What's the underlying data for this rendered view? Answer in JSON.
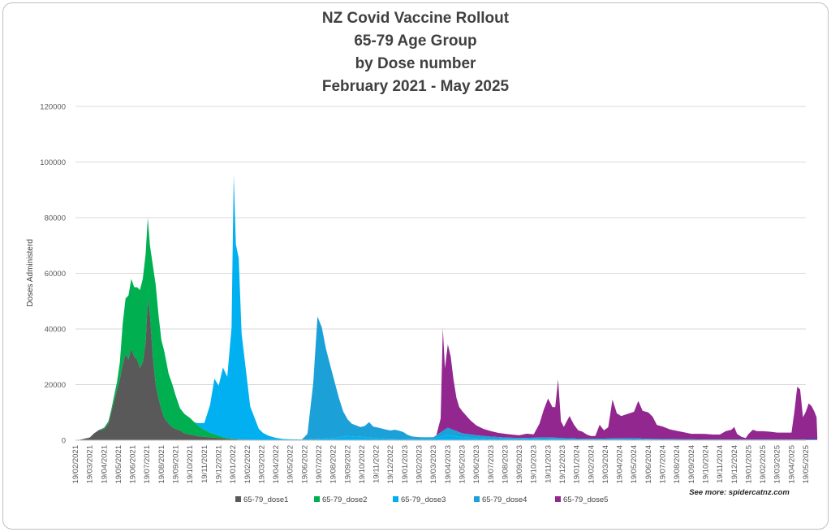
{
  "chart_data": {
    "type": "area",
    "title": [
      "NZ Covid Vaccine Rollout",
      "65-79 Age Group",
      "by Dose number",
      "February 2021 - May 2025"
    ],
    "xlabel": "",
    "ylabel": "Doses Administerd",
    "ylim": [
      0,
      120000
    ],
    "yticks": [
      0,
      20000,
      40000,
      60000,
      80000,
      100000,
      120000
    ],
    "grid": true,
    "legend_position": "bottom",
    "stacked": true,
    "note": "See more: spidercatnz.com",
    "x_tick_labels": [
      "19/02/2021",
      "19/03/2021",
      "19/04/2021",
      "19/05/2021",
      "19/06/2021",
      "19/07/2021",
      "19/08/2021",
      "19/09/2021",
      "19/10/2021",
      "19/11/2021",
      "19/12/2021",
      "19/01/2022",
      "19/02/2022",
      "19/03/2022",
      "19/04/2022",
      "19/05/2022",
      "19/06/2022",
      "19/07/2022",
      "19/08/2022",
      "19/09/2022",
      "19/10/2022",
      "19/11/2022",
      "19/12/2022",
      "19/01/2023",
      "19/02/2023",
      "19/03/2023",
      "19/04/2023",
      "19/05/2023",
      "19/06/2023",
      "19/07/2023",
      "19/08/2023",
      "19/09/2023",
      "19/10/2023",
      "19/11/2023",
      "19/12/2023",
      "19/01/2024",
      "19/02/2024",
      "19/03/2024",
      "19/04/2024",
      "19/05/2024",
      "19/06/2024",
      "19/07/2024",
      "19/08/2024",
      "19/09/2024",
      "19/10/2024",
      "19/11/2024",
      "19/12/2024",
      "19/01/2025",
      "19/02/2025",
      "19/03/2025",
      "19/04/2025",
      "19/05/2025"
    ],
    "series": [
      {
        "name": "65-79_dose1",
        "color": "#595959",
        "points": [
          [
            0,
            0
          ],
          [
            0.3,
            200
          ],
          [
            0.6,
            500
          ],
          [
            1,
            1000
          ],
          [
            1.3,
            2500
          ],
          [
            1.6,
            3500
          ],
          [
            2,
            4000
          ],
          [
            2.3,
            6000
          ],
          [
            2.6,
            12000
          ],
          [
            2.9,
            18000
          ],
          [
            3.1,
            22000
          ],
          [
            3.3,
            27000
          ],
          [
            3.5,
            31000
          ],
          [
            3.7,
            29000
          ],
          [
            3.9,
            33000
          ],
          [
            4.1,
            30000
          ],
          [
            4.3,
            29000
          ],
          [
            4.5,
            26000
          ],
          [
            4.7,
            28000
          ],
          [
            4.9,
            35000
          ],
          [
            5.05,
            51000
          ],
          [
            5.2,
            45000
          ],
          [
            5.4,
            30000
          ],
          [
            5.6,
            20000
          ],
          [
            5.8,
            15000
          ],
          [
            6,
            11000
          ],
          [
            6.2,
            8000
          ],
          [
            6.5,
            6000
          ],
          [
            6.8,
            4500
          ],
          [
            7,
            4000
          ],
          [
            7.3,
            3500
          ],
          [
            7.6,
            2500
          ],
          [
            8,
            2000
          ],
          [
            8.5,
            1500
          ],
          [
            9,
            1200
          ],
          [
            9.5,
            1000
          ],
          [
            10,
            800
          ],
          [
            10.5,
            500
          ],
          [
            11,
            300
          ],
          [
            12,
            200
          ],
          [
            13,
            100
          ],
          [
            14,
            50
          ],
          [
            20,
            0
          ],
          [
            51.8,
            0
          ]
        ]
      },
      {
        "name": "65-79_dose2",
        "color": "#00b050",
        "points": [
          [
            0,
            0
          ],
          [
            1.5,
            0
          ],
          [
            2,
            500
          ],
          [
            2.5,
            1000
          ],
          [
            2.9,
            3000
          ],
          [
            3.1,
            6000
          ],
          [
            3.3,
            15000
          ],
          [
            3.5,
            20000
          ],
          [
            3.7,
            23000
          ],
          [
            3.9,
            25000
          ],
          [
            4.1,
            25000
          ],
          [
            4.3,
            26000
          ],
          [
            4.5,
            28000
          ],
          [
            4.7,
            30000
          ],
          [
            4.9,
            32000
          ],
          [
            5.05,
            29000
          ],
          [
            5.2,
            25000
          ],
          [
            5.4,
            33000
          ],
          [
            5.6,
            36000
          ],
          [
            5.8,
            30000
          ],
          [
            6,
            25000
          ],
          [
            6.2,
            24000
          ],
          [
            6.5,
            18000
          ],
          [
            6.8,
            15000
          ],
          [
            7,
            12000
          ],
          [
            7.3,
            8000
          ],
          [
            7.6,
            7000
          ],
          [
            8,
            6000
          ],
          [
            8.5,
            4000
          ],
          [
            9,
            2500
          ],
          [
            9.5,
            1500
          ],
          [
            10,
            800
          ],
          [
            10.5,
            400
          ],
          [
            11,
            200
          ],
          [
            12,
            0
          ],
          [
            51.8,
            0
          ]
        ]
      },
      {
        "name": "65-79_dose3",
        "color": "#00b0f0",
        "points": [
          [
            0,
            0
          ],
          [
            8.3,
            0
          ],
          [
            8.6,
            1000
          ],
          [
            9,
            2500
          ],
          [
            9.4,
            10000
          ],
          [
            9.7,
            20000
          ],
          [
            10,
            18000
          ],
          [
            10.3,
            25000
          ],
          [
            10.6,
            22000
          ],
          [
            10.9,
            40000
          ],
          [
            11.05,
            95000
          ],
          [
            11.2,
            70000
          ],
          [
            11.4,
            65000
          ],
          [
            11.6,
            38000
          ],
          [
            11.9,
            25000
          ],
          [
            12.2,
            12000
          ],
          [
            12.5,
            8000
          ],
          [
            12.8,
            4000
          ],
          [
            13.1,
            2500
          ],
          [
            13.5,
            1500
          ],
          [
            14,
            800
          ],
          [
            14.5,
            400
          ],
          [
            15,
            300
          ],
          [
            16,
            200
          ],
          [
            17,
            500
          ],
          [
            18,
            800
          ],
          [
            19,
            1500
          ],
          [
            20,
            1200
          ],
          [
            21,
            800
          ],
          [
            22,
            500
          ],
          [
            23,
            400
          ],
          [
            24,
            300
          ],
          [
            25,
            600
          ],
          [
            26,
            2000
          ],
          [
            26.5,
            1500
          ],
          [
            27,
            1000
          ],
          [
            28,
            800
          ],
          [
            29,
            500
          ],
          [
            30,
            400
          ],
          [
            31,
            300
          ],
          [
            32,
            500
          ],
          [
            33,
            400
          ],
          [
            34,
            300
          ],
          [
            35,
            200
          ],
          [
            38,
            200
          ],
          [
            39,
            300
          ],
          [
            40,
            200
          ],
          [
            45,
            100
          ],
          [
            51.8,
            100
          ]
        ]
      },
      {
        "name": "65-79_dose4",
        "color": "#1ba1d8",
        "points": [
          [
            0,
            0
          ],
          [
            15.8,
            0
          ],
          [
            16.2,
            2000
          ],
          [
            16.6,
            20000
          ],
          [
            16.9,
            44000
          ],
          [
            17.2,
            40000
          ],
          [
            17.5,
            32000
          ],
          [
            17.8,
            26000
          ],
          [
            18.1,
            20000
          ],
          [
            18.4,
            14000
          ],
          [
            18.7,
            9000
          ],
          [
            19,
            6000
          ],
          [
            19.3,
            4500
          ],
          [
            19.6,
            4000
          ],
          [
            19.9,
            3500
          ],
          [
            20.2,
            4000
          ],
          [
            20.5,
            5500
          ],
          [
            20.8,
            4000
          ],
          [
            21.1,
            3800
          ],
          [
            21.4,
            3500
          ],
          [
            21.7,
            3200
          ],
          [
            22,
            3000
          ],
          [
            22.3,
            3300
          ],
          [
            22.6,
            3000
          ],
          [
            22.9,
            2500
          ],
          [
            23.2,
            1500
          ],
          [
            23.5,
            1000
          ],
          [
            24,
            800
          ],
          [
            24.5,
            600
          ],
          [
            25,
            500
          ],
          [
            25.5,
            1500
          ],
          [
            26,
            2500
          ],
          [
            26.5,
            2000
          ],
          [
            27,
            1500
          ],
          [
            27.5,
            1200
          ],
          [
            28,
            1000
          ],
          [
            29,
            800
          ],
          [
            30,
            600
          ],
          [
            31,
            500
          ],
          [
            32,
            400
          ],
          [
            33,
            600
          ],
          [
            34,
            500
          ],
          [
            35,
            400
          ],
          [
            36,
            300
          ],
          [
            38,
            500
          ],
          [
            39,
            400
          ],
          [
            40,
            300
          ],
          [
            42,
            200
          ],
          [
            44,
            150
          ],
          [
            51.8,
            150
          ]
        ]
      },
      {
        "name": "65-79_dose5",
        "color": "#92278f",
        "points": [
          [
            0,
            0
          ],
          [
            25.2,
            0
          ],
          [
            25.5,
            5000
          ],
          [
            25.65,
            37000
          ],
          [
            25.8,
            22000
          ],
          [
            26,
            30000
          ],
          [
            26.2,
            26000
          ],
          [
            26.4,
            18000
          ],
          [
            26.6,
            12000
          ],
          [
            26.8,
            9000
          ],
          [
            27,
            8000
          ],
          [
            27.3,
            6500
          ],
          [
            27.6,
            5000
          ],
          [
            28,
            3500
          ],
          [
            28.5,
            2500
          ],
          [
            29,
            2000
          ],
          [
            29.5,
            1500
          ],
          [
            30,
            1300
          ],
          [
            30.5,
            1100
          ],
          [
            31,
            1000
          ],
          [
            31.5,
            1500
          ],
          [
            32,
            1200
          ],
          [
            32.4,
            5000
          ],
          [
            32.7,
            10000
          ],
          [
            33,
            14000
          ],
          [
            33.3,
            11000
          ],
          [
            33.5,
            11000
          ],
          [
            33.7,
            21000
          ],
          [
            33.9,
            6000
          ],
          [
            34.1,
            4000
          ],
          [
            34.3,
            6000
          ],
          [
            34.5,
            8000
          ],
          [
            34.8,
            5000
          ],
          [
            35.1,
            3000
          ],
          [
            35.4,
            2500
          ],
          [
            35.7,
            1500
          ],
          [
            36,
            1000
          ],
          [
            36.3,
            1000
          ],
          [
            36.6,
            5000
          ],
          [
            36.9,
            3000
          ],
          [
            37.2,
            4000
          ],
          [
            37.5,
            14000
          ],
          [
            37.8,
            9000
          ],
          [
            38.1,
            8000
          ],
          [
            38.4,
            8500
          ],
          [
            38.7,
            9000
          ],
          [
            39,
            9500
          ],
          [
            39.3,
            13500
          ],
          [
            39.6,
            10000
          ],
          [
            40,
            9500
          ],
          [
            40.3,
            8000
          ],
          [
            40.6,
            5000
          ],
          [
            41,
            4500
          ],
          [
            41.5,
            3500
          ],
          [
            42,
            3000
          ],
          [
            42.5,
            2500
          ],
          [
            43,
            2000
          ],
          [
            43.5,
            2000
          ],
          [
            44,
            2000
          ],
          [
            44.5,
            1800
          ],
          [
            45,
            1800
          ],
          [
            45.4,
            3000
          ],
          [
            45.8,
            3500
          ],
          [
            46,
            4500
          ],
          [
            46.2,
            2000
          ],
          [
            46.5,
            1000
          ],
          [
            46.8,
            500
          ],
          [
            47,
            2000
          ],
          [
            47.3,
            3500
          ],
          [
            47.6,
            3000
          ],
          [
            48,
            3000
          ],
          [
            48.5,
            2800
          ],
          [
            49,
            2500
          ],
          [
            49.5,
            2500
          ],
          [
            50,
            2500
          ],
          [
            50.2,
            10000
          ],
          [
            50.4,
            19000
          ],
          [
            50.6,
            18000
          ],
          [
            50.8,
            8000
          ],
          [
            51,
            10000
          ],
          [
            51.2,
            13000
          ],
          [
            51.4,
            12000
          ],
          [
            51.6,
            10000
          ],
          [
            51.75,
            8000
          ],
          [
            51.8,
            1000
          ]
        ]
      }
    ]
  }
}
